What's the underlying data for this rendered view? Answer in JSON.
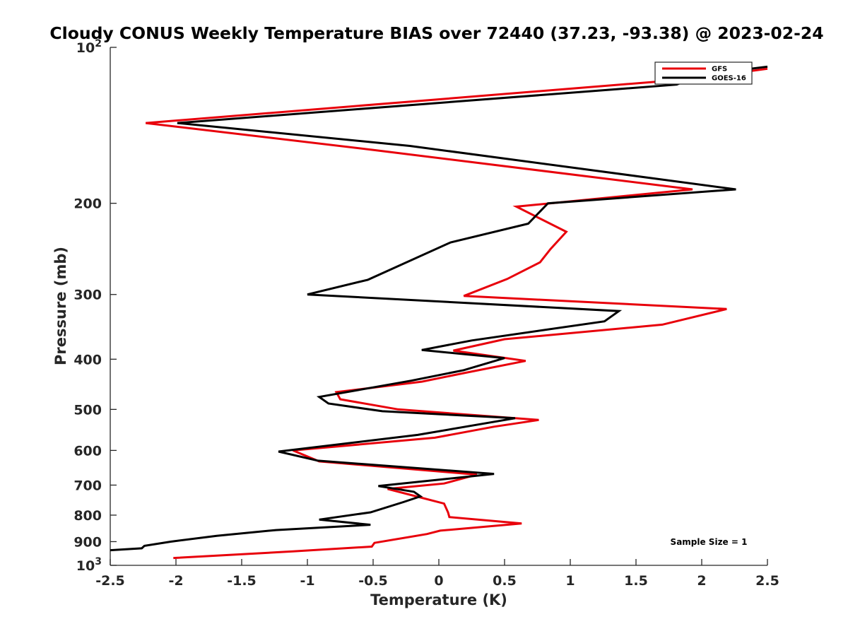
{
  "chart_data": {
    "type": "line",
    "title": "Cloudy CONUS Weekly Temperature BIAS over 72440 (37.23, -93.38) @ 2023-02-24",
    "xlabel": "Temperature (K)",
    "ylabel": "Pressure (mb)",
    "xlim": [
      -2.5,
      2.5
    ],
    "ylim": [
      1000,
      100
    ],
    "yscale": "log",
    "reverse_y": true,
    "grid": false,
    "legend_position": "top-right",
    "x_ticks": [
      "-2.5",
      "-2",
      "-1.5",
      "-1",
      "-0.5",
      "0",
      "0.5",
      "1",
      "1.5",
      "2",
      "2.5"
    ],
    "y_ticks": [
      {
        "value": 100,
        "base": "10",
        "exp": "2"
      },
      {
        "value": 200,
        "label": "200"
      },
      {
        "value": 300,
        "label": "300"
      },
      {
        "value": 400,
        "label": "400"
      },
      {
        "value": 500,
        "label": "500"
      },
      {
        "value": 600,
        "label": "600"
      },
      {
        "value": 700,
        "label": "700"
      },
      {
        "value": 800,
        "label": "800"
      },
      {
        "value": 900,
        "label": "900"
      },
      {
        "value": 1000,
        "base": "10",
        "exp": "3"
      }
    ],
    "annotation": "Sample Size = 1",
    "series": [
      {
        "name": "GFS",
        "color": "#e8000b",
        "points": [
          [
            2.5,
            110
          ],
          [
            1.93,
            115
          ],
          [
            -2.23,
            140
          ],
          [
            -0.48,
            158
          ],
          [
            1.93,
            188
          ],
          [
            0.59,
            203
          ],
          [
            0.97,
            227
          ],
          [
            0.85,
            245
          ],
          [
            0.77,
            260
          ],
          [
            0.52,
            280
          ],
          [
            0.19,
            302
          ],
          [
            2.19,
            320
          ],
          [
            1.7,
            343
          ],
          [
            0.5,
            366
          ],
          [
            0.11,
            385
          ],
          [
            0.66,
            403
          ],
          [
            0.2,
            425
          ],
          [
            -0.13,
            442
          ],
          [
            -0.78,
            463
          ],
          [
            -0.75,
            478
          ],
          [
            -0.31,
            500
          ],
          [
            0.76,
            524
          ],
          [
            0.42,
            540
          ],
          [
            -0.03,
            567
          ],
          [
            -1.11,
            600
          ],
          [
            -0.91,
            630
          ],
          [
            0.29,
            668
          ],
          [
            0.04,
            695
          ],
          [
            -0.39,
            712
          ],
          [
            -0.18,
            735
          ],
          [
            0.04,
            760
          ],
          [
            0.07,
            790
          ],
          [
            0.08,
            807
          ],
          [
            0.63,
            830
          ],
          [
            0.01,
            857
          ],
          [
            -0.09,
            870
          ],
          [
            -0.49,
            905
          ],
          [
            -0.51,
            920
          ],
          [
            -1.11,
            940
          ],
          [
            -2.02,
            968
          ]
        ]
      },
      {
        "name": "GOES-16",
        "color": "#000000",
        "points": [
          [
            2.5,
            109
          ],
          [
            1.99,
            113
          ],
          [
            1.81,
            118
          ],
          [
            -1.99,
            140
          ],
          [
            -0.22,
            155
          ],
          [
            2.26,
            188
          ],
          [
            0.83,
            200
          ],
          [
            0.68,
            219
          ],
          [
            0.09,
            238
          ],
          [
            -0.54,
            281
          ],
          [
            -1.0,
            300
          ],
          [
            1.37,
            323
          ],
          [
            1.26,
            338
          ],
          [
            0.25,
            368
          ],
          [
            -0.13,
            384
          ],
          [
            0.5,
            398
          ],
          [
            0.19,
            420
          ],
          [
            -0.21,
            440
          ],
          [
            -0.91,
            473
          ],
          [
            -0.84,
            487
          ],
          [
            -0.43,
            504
          ],
          [
            0.58,
            520
          ],
          [
            -0.16,
            560
          ],
          [
            -1.22,
            603
          ],
          [
            -0.92,
            628
          ],
          [
            0.42,
            666
          ],
          [
            -0.46,
            703
          ],
          [
            -0.19,
            721
          ],
          [
            -0.14,
            736
          ],
          [
            -0.27,
            755
          ],
          [
            -0.52,
            790
          ],
          [
            -0.91,
            816
          ],
          [
            -0.52,
            835
          ],
          [
            -1.24,
            855
          ],
          [
            -1.69,
            877
          ],
          [
            -2.04,
            900
          ],
          [
            -2.24,
            917
          ],
          [
            -2.26,
            927
          ],
          [
            -2.5,
            935
          ]
        ]
      }
    ]
  }
}
